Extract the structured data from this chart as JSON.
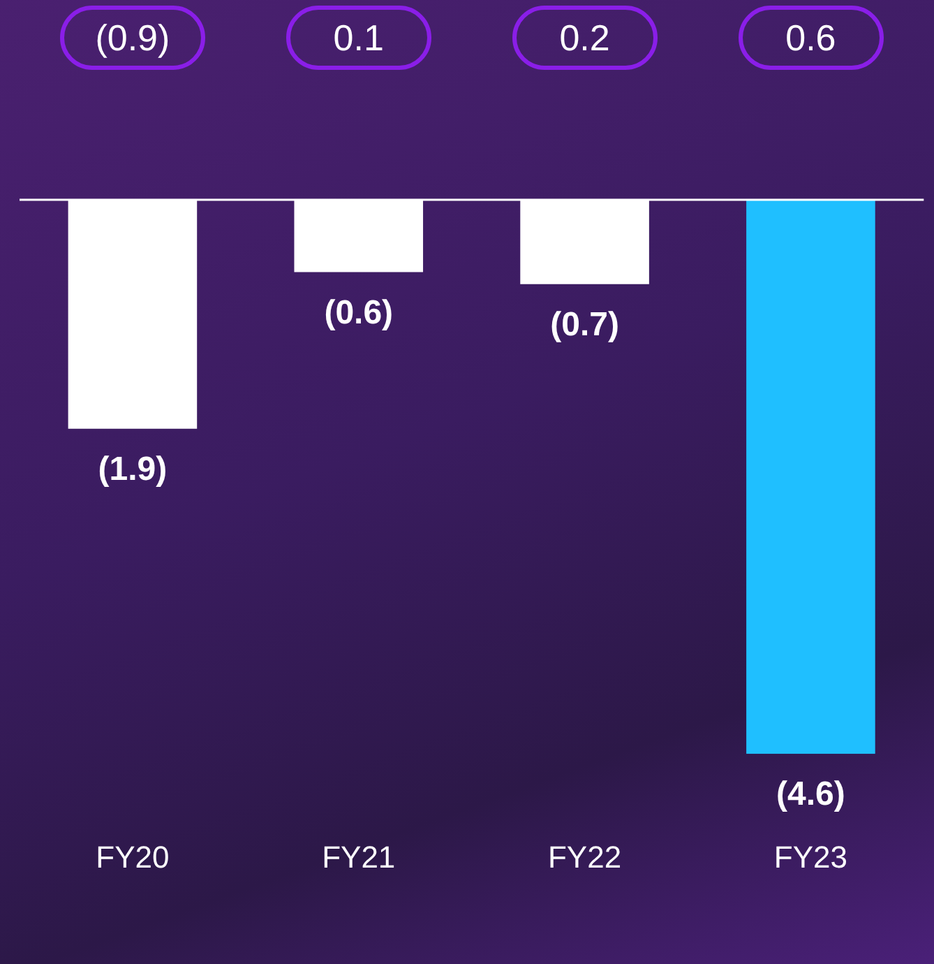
{
  "chart_data": {
    "type": "bar",
    "categories": [
      "FY20",
      "FY21",
      "FY22",
      "FY23"
    ],
    "values": [
      -1.9,
      -0.6,
      -0.7,
      -4.6
    ],
    "colors": [
      "#ffffff",
      "#ffffff",
      "#ffffff",
      "#1fbfff"
    ],
    "value_labels": [
      "(1.9)",
      "(0.6)",
      "(0.7)",
      "(4.6)"
    ],
    "annotations": [
      "(0.9)",
      "0.1",
      "0.2",
      "0.6"
    ],
    "tick_labels": "x",
    "grid": false,
    "legend": false
  }
}
